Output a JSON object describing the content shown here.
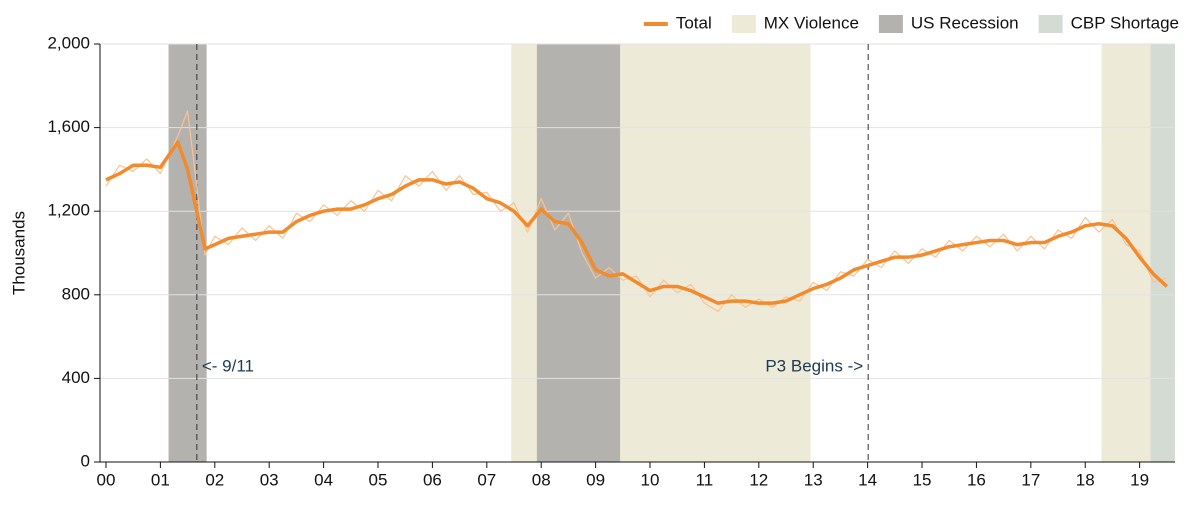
{
  "chart_data": {
    "type": "line",
    "ylabel": "Thousands",
    "x": [
      2000,
      2000.25,
      2000.5,
      2000.75,
      2001,
      2001.32,
      2001.5,
      2001.82,
      2002,
      2002.25,
      2002.5,
      2002.75,
      2003,
      2003.25,
      2003.5,
      2003.75,
      2004,
      2004.25,
      2004.5,
      2004.75,
      2005,
      2005.25,
      2005.5,
      2005.75,
      2006,
      2006.25,
      2006.5,
      2006.75,
      2007,
      2007.25,
      2007.5,
      2007.75,
      2008,
      2008.25,
      2008.5,
      2008.75,
      2009,
      2009.25,
      2009.5,
      2009.75,
      2010,
      2010.25,
      2010.5,
      2010.75,
      2011,
      2011.25,
      2011.5,
      2011.75,
      2012,
      2012.25,
      2012.5,
      2012.75,
      2013,
      2013.25,
      2013.5,
      2013.75,
      2014,
      2014.25,
      2014.5,
      2014.75,
      2015,
      2015.25,
      2015.5,
      2015.75,
      2016,
      2016.25,
      2016.5,
      2016.75,
      2017,
      2017.25,
      2017.5,
      2017.75,
      2018,
      2018.25,
      2018.5,
      2018.75,
      2019,
      2019.25,
      2019.5
    ],
    "series": [
      {
        "name": "Total",
        "color": "#f28a2e",
        "width": 3.5,
        "values": [
          1350,
          1380,
          1420,
          1420,
          1410,
          1530,
          1400,
          1020,
          1040,
          1070,
          1080,
          1090,
          1100,
          1100,
          1150,
          1180,
          1200,
          1210,
          1210,
          1230,
          1260,
          1280,
          1320,
          1350,
          1350,
          1330,
          1340,
          1310,
          1260,
          1240,
          1200,
          1130,
          1210,
          1150,
          1140,
          1050,
          920,
          890,
          900,
          860,
          820,
          840,
          840,
          820,
          790,
          760,
          770,
          770,
          760,
          760,
          770,
          800,
          830,
          850,
          880,
          920,
          940,
          960,
          980,
          980,
          990,
          1010,
          1030,
          1040,
          1050,
          1060,
          1060,
          1040,
          1050,
          1050,
          1080,
          1100,
          1130,
          1140,
          1130,
          1070,
          980,
          900,
          840
        ]
      },
      {
        "color": "#f9c390",
        "width": 1.2,
        "values": [
          1320,
          1420,
          1390,
          1450,
          1380,
          1560,
          1680,
          990,
          1080,
          1040,
          1120,
          1060,
          1130,
          1070,
          1190,
          1150,
          1230,
          1180,
          1250,
          1200,
          1300,
          1250,
          1370,
          1320,
          1390,
          1300,
          1370,
          1280,
          1290,
          1200,
          1240,
          1100,
          1260,
          1110,
          1190,
          1000,
          880,
          930,
          870,
          890,
          790,
          870,
          810,
          850,
          760,
          720,
          800,
          740,
          780,
          740,
          790,
          770,
          860,
          820,
          910,
          890,
          970,
          930,
          1010,
          950,
          1020,
          980,
          1060,
          1010,
          1080,
          1030,
          1090,
          1010,
          1080,
          1020,
          1110,
          1070,
          1170,
          1100,
          1160,
          1040,
          1010,
          860,
          880
        ]
      }
    ],
    "bands": [
      {
        "name": "MX Violence",
        "color": "#eeead8",
        "ranges": [
          [
            2007.45,
            2012.95
          ],
          [
            2018.3,
            2019.65
          ]
        ]
      },
      {
        "name": "US Recession",
        "color": "#b4b2ae",
        "ranges": [
          [
            2001.15,
            2001.85
          ],
          [
            2007.92,
            2009.45
          ]
        ]
      },
      {
        "name": "CBP Shortage",
        "color": "#d3dbd3",
        "ranges": [
          [
            2019.2,
            2019.65
          ]
        ]
      }
    ],
    "annotations": [
      {
        "x": 2001.67,
        "text": "<- 9/11",
        "side": "right"
      },
      {
        "x": 2014.01,
        "text": "P3 Begins ->",
        "side": "left"
      }
    ],
    "xlim": [
      1999.89,
      2019.65
    ],
    "xticks": [
      {
        "value": 2000,
        "label": "00"
      },
      {
        "value": 2001,
        "label": "01"
      },
      {
        "value": 2002,
        "label": "02"
      },
      {
        "value": 2003,
        "label": "03"
      },
      {
        "value": 2004,
        "label": "04"
      },
      {
        "value": 2005,
        "label": "05"
      },
      {
        "value": 2006,
        "label": "06"
      },
      {
        "value": 2007,
        "label": "07"
      },
      {
        "value": 2008,
        "label": "08"
      },
      {
        "value": 2009,
        "label": "09"
      },
      {
        "value": 2010,
        "label": "10"
      },
      {
        "value": 2011,
        "label": "11"
      },
      {
        "value": 2012,
        "label": "12"
      },
      {
        "value": 2013,
        "label": "13"
      },
      {
        "value": 2014,
        "label": "14"
      },
      {
        "value": 2015,
        "label": "15"
      },
      {
        "value": 2016,
        "label": "16"
      },
      {
        "value": 2017,
        "label": "17"
      },
      {
        "value": 2018,
        "label": "18"
      },
      {
        "value": 2019,
        "label": "19"
      }
    ],
    "ylim": [
      0,
      2000
    ],
    "yticks": [
      0,
      400,
      800,
      {
        "value": 1200,
        "label": "1,200"
      },
      {
        "value": 1600,
        "label": "1,600"
      },
      {
        "value": 2000,
        "label": "2,000"
      }
    ],
    "grid": true,
    "legend": "top-right"
  }
}
